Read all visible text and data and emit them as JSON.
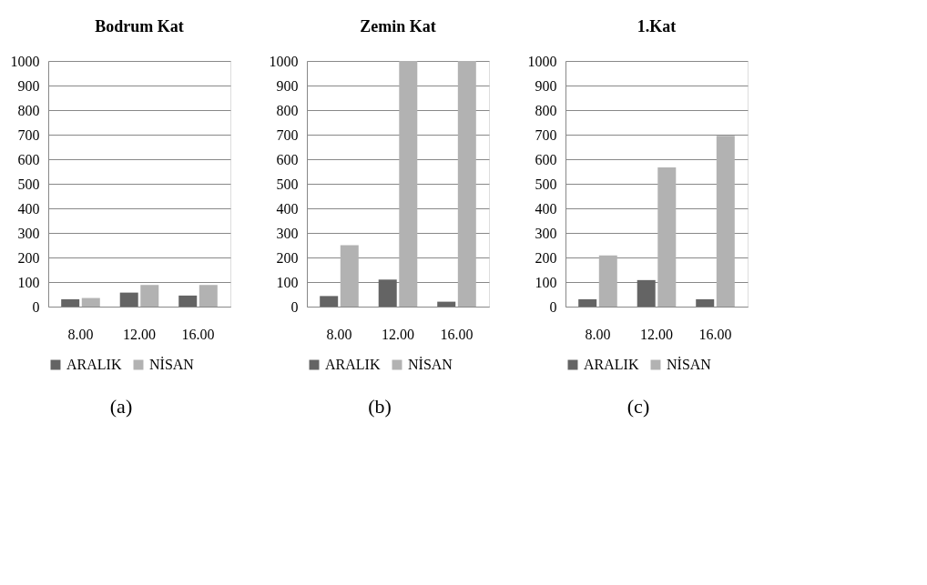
{
  "chart_data": [
    {
      "type": "bar",
      "title": "Bodrum Kat",
      "categories": [
        "8.00",
        "12.00",
        "16.00"
      ],
      "ylim": [
        0,
        1000
      ],
      "yticks": [
        0,
        100,
        200,
        300,
        400,
        500,
        600,
        700,
        800,
        900,
        1000
      ],
      "grid": "y",
      "legend": "bottom",
      "annotations": [
        "(a)"
      ],
      "series": [
        {
          "name": "ARALIK",
          "color": "#646464",
          "values": [
            30,
            57,
            45
          ]
        },
        {
          "name": "NİSAN",
          "color": "#b2b2b2",
          "values": [
            35,
            88,
            88
          ]
        }
      ]
    },
    {
      "type": "bar",
      "title": "Zemin Kat",
      "categories": [
        "8.00",
        "12.00",
        "16.00"
      ],
      "ylim": [
        0,
        1000
      ],
      "yticks": [
        0,
        100,
        200,
        300,
        400,
        500,
        600,
        700,
        800,
        900,
        1000
      ],
      "grid": "y",
      "legend": "bottom",
      "annotations": [
        "(b)"
      ],
      "series": [
        {
          "name": "ARALIK",
          "color": "#646464",
          "values": [
            43,
            110,
            20
          ]
        },
        {
          "name": "NİSAN",
          "color": "#b2b2b2",
          "values": [
            250,
            1000,
            1000
          ]
        }
      ]
    },
    {
      "type": "bar",
      "title": "1.Kat",
      "categories": [
        "8.00",
        "12.00",
        "16.00"
      ],
      "ylim": [
        0,
        1000
      ],
      "yticks": [
        0,
        100,
        200,
        300,
        400,
        500,
        600,
        700,
        800,
        900,
        1000
      ],
      "grid": "y",
      "legend": "bottom",
      "annotations": [
        "(c)"
      ],
      "series": [
        {
          "name": "ARALIK",
          "color": "#646464",
          "values": [
            30,
            108,
            30
          ]
        },
        {
          "name": "NİSAN",
          "color": "#b2b2b2",
          "values": [
            208,
            567,
            695
          ]
        }
      ]
    }
  ]
}
